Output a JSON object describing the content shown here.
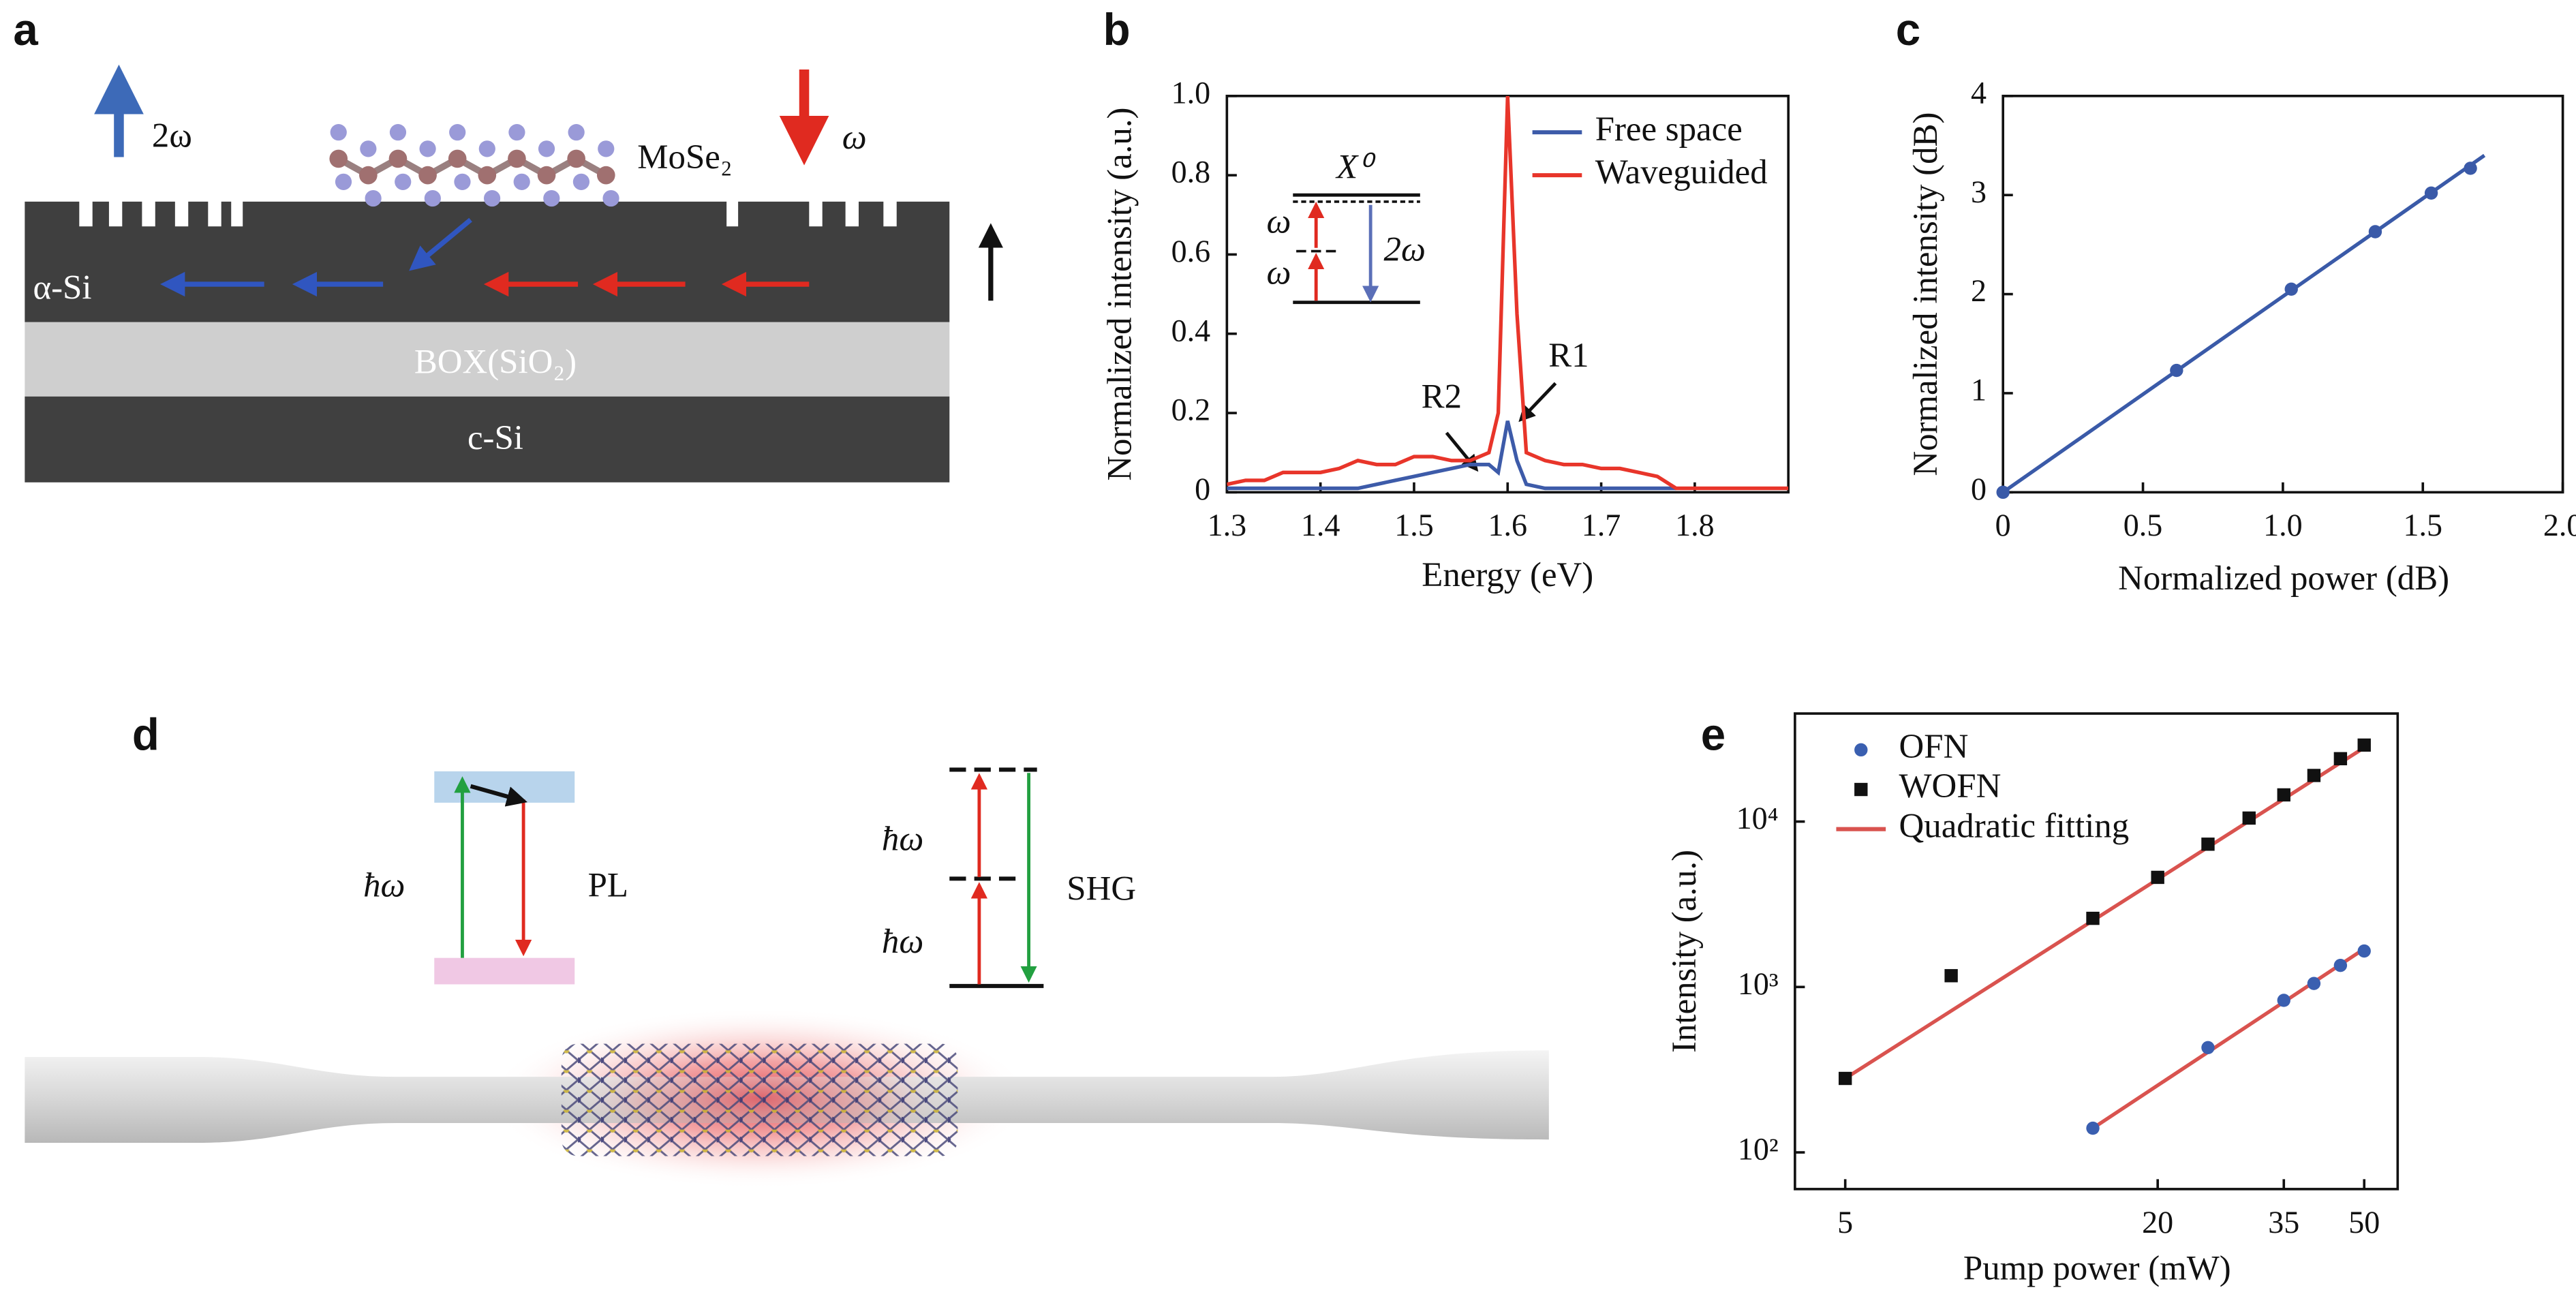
{
  "panel_labels": [
    "a",
    "b",
    "c",
    "d",
    "e"
  ],
  "panel_a": {
    "two_omega": "2ω",
    "material": "MoSe₂",
    "omega": "ω",
    "layer_top": "α-Si",
    "layer_box": "BOX(SiO₂)",
    "layer_bottom": "c-Si"
  },
  "panel_d": {
    "pl_photon": "ħω",
    "pl_label": "PL",
    "shg_photon_1": "ħω",
    "shg_photon_2": "ħω",
    "shg_label": "SHG"
  },
  "chart_data": [
    {
      "type": "line",
      "x_label": "Energy (eV)",
      "y_label": "Normalized intensity (a.u.)",
      "x": [
        1.3,
        1.32,
        1.34,
        1.36,
        1.38,
        1.4,
        1.42,
        1.44,
        1.46,
        1.48,
        1.5,
        1.52,
        1.54,
        1.56,
        1.58,
        1.59,
        1.6,
        1.61,
        1.62,
        1.64,
        1.66,
        1.68,
        1.7,
        1.72,
        1.74,
        1.76,
        1.78,
        1.8,
        1.84,
        1.88,
        1.9
      ],
      "series": [
        {
          "name": "Free space",
          "color": "#3d5ba9",
          "values": [
            0.01,
            0.01,
            0.01,
            0.01,
            0.01,
            0.01,
            0.01,
            0.01,
            0.02,
            0.03,
            0.04,
            0.05,
            0.06,
            0.07,
            0.07,
            0.05,
            0.18,
            0.08,
            0.02,
            0.01,
            0.01,
            0.01,
            0.01,
            0.01,
            0.01,
            0.01,
            0.01,
            null,
            null,
            null,
            null
          ]
        },
        {
          "name": "Waveguided",
          "color": "#e8352a",
          "values": [
            0.02,
            0.03,
            0.03,
            0.05,
            0.05,
            0.05,
            0.06,
            0.08,
            0.07,
            0.07,
            0.09,
            0.09,
            0.08,
            0.08,
            0.1,
            0.2,
            1.0,
            0.45,
            0.1,
            0.08,
            0.07,
            0.07,
            0.06,
            0.06,
            0.05,
            0.04,
            0.01,
            0.01,
            0.01,
            0.01,
            0.01
          ]
        }
      ],
      "xlim": [
        1.3,
        1.9
      ],
      "xticks": [
        1.3,
        1.4,
        1.5,
        1.6,
        1.7,
        1.8
      ],
      "ylim": [
        0,
        1.0
      ],
      "yticks": [
        0,
        0.2,
        0.4,
        0.6,
        0.8,
        {
          "value": 1.0,
          "label": "1.0"
        }
      ],
      "legend": "upper right",
      "annotations": [
        "R1",
        "R2"
      ],
      "inset": {
        "top_level": "X⁰",
        "photon_1": "ω",
        "photon_2": "ω",
        "emission": "2ω"
      }
    },
    {
      "type": "scatter",
      "x_label": "Normalized power (dB)",
      "y_label": "Normalized intensity (dB)",
      "series": [
        {
          "color": "#3a5aa8",
          "marker": "circle",
          "x": [
            0,
            0.62,
            1.03,
            1.33,
            1.53,
            1.67
          ],
          "values": [
            0,
            1.23,
            2.05,
            2.63,
            3.02,
            3.27
          ]
        },
        {
          "color": "#3a5aa8",
          "marker": "line",
          "x": [
            0,
            1.72
          ],
          "values": [
            0,
            3.4
          ]
        }
      ],
      "xlim": [
        0,
        2.0
      ],
      "xticks": [
        0,
        0.5,
        {
          "value": 1.0,
          "label": "1.0"
        },
        1.5,
        {
          "value": 2.0,
          "label": "2.0"
        }
      ],
      "ylim": [
        0,
        4
      ],
      "yticks": [
        0,
        1,
        2,
        3,
        4
      ]
    },
    {
      "type": "scatter",
      "x_label": "Pump power (mW)",
      "y_label": "Intensity (a.u.)",
      "log_x": true,
      "log_y": true,
      "series": [
        {
          "name": "OFN",
          "color": "#3a5fb0",
          "marker": "circle",
          "x": [
            15,
            25,
            35,
            40,
            45,
            50
          ],
          "values": [
            140,
            430,
            830,
            1050,
            1350,
            1650
          ]
        },
        {
          "name": "WOFN",
          "color": "#111111",
          "marker": "square",
          "x": [
            5,
            8,
            15,
            20,
            25,
            30,
            35,
            40,
            45,
            50
          ],
          "values": [
            280,
            1170,
            2600,
            4600,
            7300,
            10500,
            14500,
            19000,
            24000,
            29000
          ]
        },
        {
          "name": "Quadratic fitting",
          "color": "#d9534f",
          "marker": "line",
          "x": [
            5,
            50,
            null,
            15,
            50
          ],
          "values": [
            280,
            28000,
            null,
            140,
            1700
          ]
        }
      ],
      "xlim": [
        4,
        58
      ],
      "xticks": [
        5,
        20,
        35,
        50
      ],
      "ylim": [
        60,
        45000
      ],
      "yticks": [
        {
          "value": 100,
          "label": "10²"
        },
        {
          "value": 1000,
          "label": "10³"
        },
        {
          "value": 10000,
          "label": "10⁴"
        }
      ],
      "legend": "upper left"
    }
  ]
}
